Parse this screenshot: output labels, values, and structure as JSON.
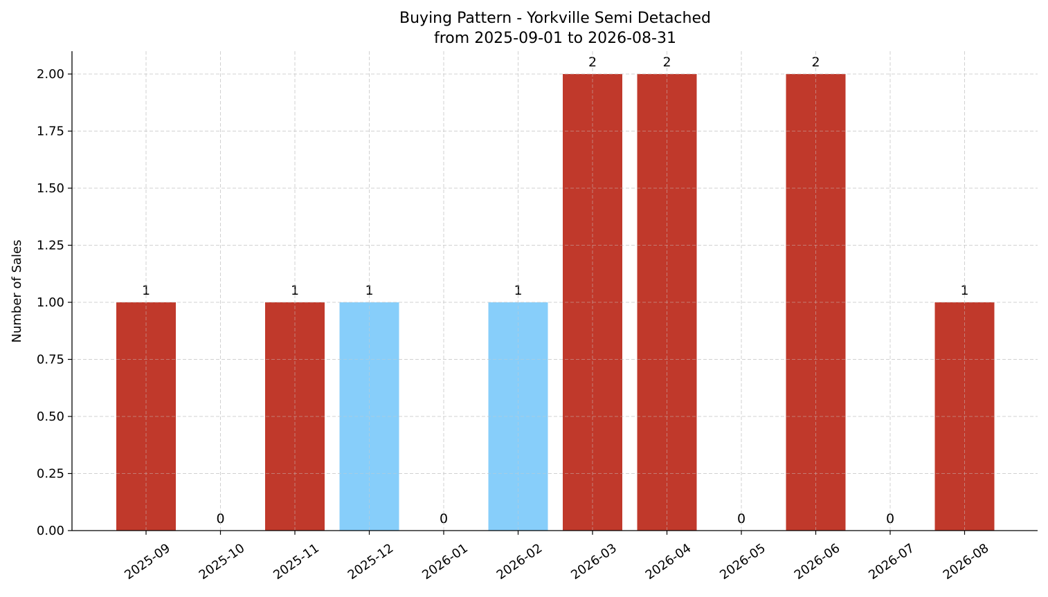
{
  "chart_data": {
    "type": "bar",
    "title": "Buying Pattern - Yorkville Semi Detached",
    "subtitle": "from 2025-09-01 to 2026-08-31",
    "xlabel": "",
    "ylabel": "Number of Sales",
    "categories": [
      "2025-09",
      "2025-10",
      "2025-11",
      "2025-12",
      "2026-01",
      "2026-02",
      "2026-03",
      "2026-04",
      "2026-05",
      "2026-06",
      "2026-07",
      "2026-08"
    ],
    "values": [
      1,
      0,
      1,
      1,
      0,
      1,
      2,
      2,
      0,
      2,
      0,
      1
    ],
    "bar_colors": [
      "#c0392b",
      "#c0392b",
      "#c0392b",
      "#87cefa",
      "#c0392b",
      "#87cefa",
      "#c0392b",
      "#c0392b",
      "#c0392b",
      "#c0392b",
      "#c0392b",
      "#c0392b"
    ],
    "data_labels": [
      "1",
      "0",
      "1",
      "1",
      "0",
      "1",
      "2",
      "2",
      "0",
      "2",
      "0",
      "1"
    ],
    "ylim": [
      0,
      2.1
    ],
    "yticks": [
      0,
      0.25,
      0.5,
      0.75,
      1.0,
      1.25,
      1.5,
      1.75,
      2.0
    ],
    "ytick_labels": [
      "0.00",
      "0.25",
      "0.50",
      "0.75",
      "1.00",
      "1.25",
      "1.50",
      "1.75",
      "2.00"
    ],
    "grid": true,
    "legend": "none"
  }
}
